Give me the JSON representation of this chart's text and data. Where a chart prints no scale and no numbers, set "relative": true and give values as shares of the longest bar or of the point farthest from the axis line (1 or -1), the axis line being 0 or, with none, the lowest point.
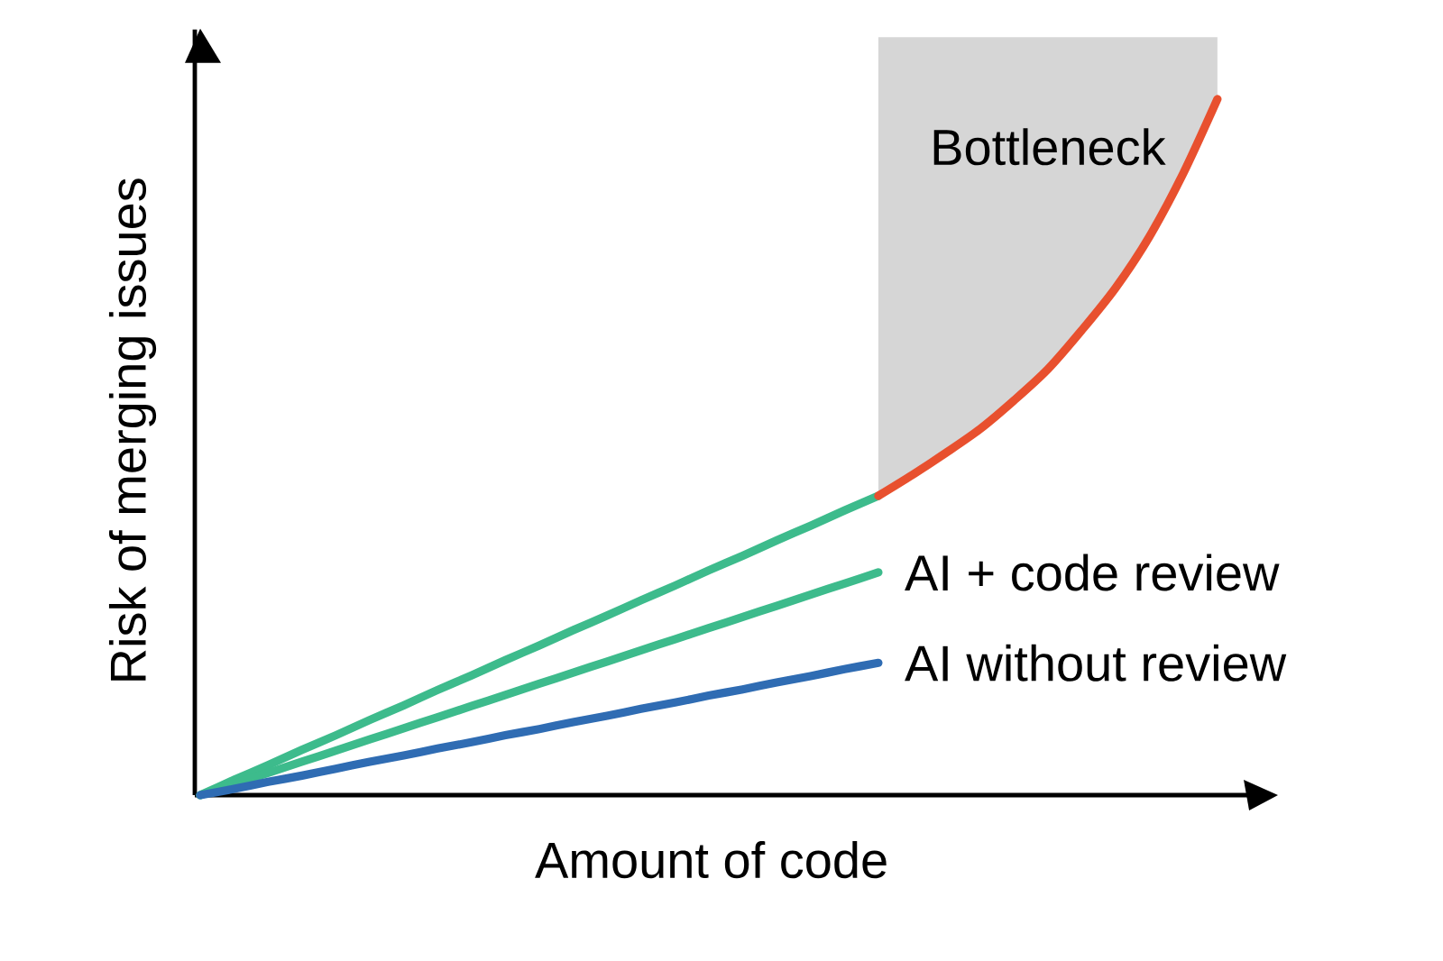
{
  "chart_data": {
    "type": "line",
    "relative": true,
    "xlabel": "Amount of code",
    "ylabel": "Risk of merging issues",
    "categories": [
      null,
      null,
      null,
      null,
      null,
      null,
      null,
      null,
      null,
      null,
      null,
      null,
      null,
      null,
      null,
      null,
      null,
      null,
      null,
      null,
      null,
      null,
      null,
      null,
      null,
      null,
      null,
      null,
      null,
      null,
      null
    ],
    "series": [
      {
        "color": "#3dbb8c",
        "values": [
          0,
          0.022,
          0.043,
          0.065,
          0.086,
          0.108,
          0.129,
          0.151,
          0.172,
          0.194,
          0.215,
          0.237,
          0.258,
          0.28,
          0.301,
          0.323,
          0.344,
          0.366,
          0.387,
          0.409,
          0.43,
          null,
          null,
          null,
          null,
          null,
          null,
          null,
          null,
          null,
          null
        ]
      },
      {
        "color": "#e8502e",
        "values": [
          null,
          null,
          null,
          null,
          null,
          null,
          null,
          null,
          null,
          null,
          null,
          null,
          null,
          null,
          null,
          null,
          null,
          null,
          null,
          null,
          0.43,
          0.46,
          0.492,
          0.526,
          0.567,
          0.612,
          0.668,
          0.729,
          0.803,
          0.894,
          1
        ]
      },
      {
        "name": "AI + code review",
        "color": "#3dbb8c",
        "values": [
          0,
          0.016,
          0.032,
          0.048,
          0.064,
          0.08,
          0.096,
          0.112,
          0.128,
          0.144,
          0.16,
          0.176,
          0.192,
          0.208,
          0.224,
          0.24,
          0.256,
          0.272,
          0.288,
          0.304,
          0.32,
          null,
          null,
          null,
          null,
          null,
          null,
          null,
          null,
          null,
          null
        ]
      },
      {
        "name": "AI without review",
        "color": "#2f6cb3",
        "values": [
          0,
          0.009,
          0.019,
          0.028,
          0.038,
          0.048,
          0.057,
          0.067,
          0.076,
          0.086,
          0.095,
          0.105,
          0.114,
          0.124,
          0.133,
          0.143,
          0.152,
          0.162,
          0.171,
          0.181,
          0.19,
          null,
          null,
          null,
          null,
          null,
          null,
          null,
          null,
          null,
          null
        ]
      }
    ],
    "annotations": [
      "Bottleneck"
    ]
  }
}
